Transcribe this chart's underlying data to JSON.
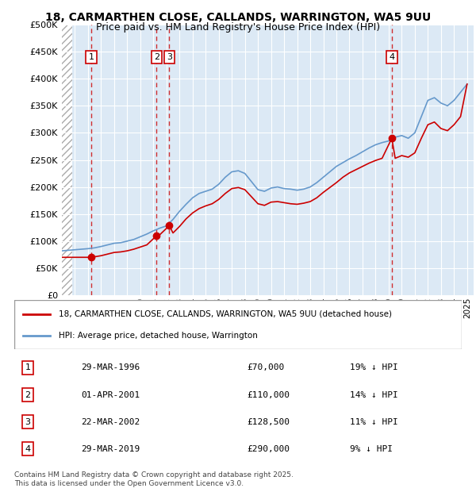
{
  "title1": "18, CARMARTHEN CLOSE, CALLANDS, WARRINGTON, WA5 9UU",
  "title2": "Price paid vs. HM Land Registry's House Price Index (HPI)",
  "ylabel_ticks": [
    "£0",
    "£50K",
    "£100K",
    "£150K",
    "£200K",
    "£250K",
    "£300K",
    "£350K",
    "£400K",
    "£450K",
    "£500K"
  ],
  "ytick_vals": [
    0,
    50000,
    100000,
    150000,
    200000,
    250000,
    300000,
    350000,
    400000,
    450000,
    500000
  ],
  "xmin": 1994,
  "xmax": 2025.5,
  "ymin": 0,
  "ymax": 500000,
  "background_color": "#dce9f5",
  "hatch_color": "#c0c0c0",
  "grid_color": "#ffffff",
  "sale_dates": [
    1996.24,
    2001.25,
    2002.22,
    2019.24
  ],
  "sale_prices": [
    70000,
    110000,
    128500,
    290000
  ],
  "sale_labels": [
    "1",
    "2",
    "3",
    "4"
  ],
  "red_line_color": "#cc0000",
  "blue_line_color": "#6699cc",
  "legend_red": "18, CARMARTHEN CLOSE, CALLANDS, WARRINGTON, WA5 9UU (detached house)",
  "legend_blue": "HPI: Average price, detached house, Warrington",
  "transaction_rows": [
    {
      "num": "1",
      "date": "29-MAR-1996",
      "price": "£70,000",
      "hpi": "19% ↓ HPI"
    },
    {
      "num": "2",
      "date": "01-APR-2001",
      "price": "£110,000",
      "hpi": "14% ↓ HPI"
    },
    {
      "num": "3",
      "date": "22-MAR-2002",
      "price": "£128,500",
      "hpi": "11% ↓ HPI"
    },
    {
      "num": "4",
      "date": "29-MAR-2019",
      "price": "£290,000",
      "hpi": "9% ↓ HPI"
    }
  ],
  "footer": "Contains HM Land Registry data © Crown copyright and database right 2025.\nThis data is licensed under the Open Government Licence v3.0.",
  "hpi_years": [
    1994,
    1994.5,
    1995,
    1995.5,
    1996,
    1996.5,
    1997,
    1997.5,
    1998,
    1998.5,
    1999,
    1999.5,
    2000,
    2000.5,
    2001,
    2001.5,
    2002,
    2002.5,
    2003,
    2003.5,
    2004,
    2004.5,
    2005,
    2005.5,
    2006,
    2006.5,
    2007,
    2007.5,
    2008,
    2008.5,
    2009,
    2009.5,
    2010,
    2010.5,
    2011,
    2011.5,
    2012,
    2012.5,
    2013,
    2013.5,
    2014,
    2014.5,
    2015,
    2015.5,
    2016,
    2016.5,
    2017,
    2017.5,
    2018,
    2018.5,
    2019,
    2019.5,
    2020,
    2020.5,
    2021,
    2021.5,
    2022,
    2022.5,
    2023,
    2023.5,
    2024,
    2024.5,
    2025
  ],
  "hpi_values": [
    82000,
    83000,
    84000,
    85000,
    86000,
    87500,
    90000,
    93000,
    96000,
    97000,
    100000,
    103000,
    108000,
    113000,
    119000,
    124000,
    128000,
    140000,
    155000,
    168000,
    180000,
    188000,
    192000,
    196000,
    205000,
    218000,
    228000,
    230000,
    225000,
    210000,
    195000,
    192000,
    198000,
    200000,
    197000,
    196000,
    194000,
    196000,
    200000,
    208000,
    218000,
    228000,
    238000,
    245000,
    252000,
    258000,
    265000,
    272000,
    278000,
    282000,
    285000,
    292000,
    295000,
    290000,
    300000,
    330000,
    360000,
    365000,
    355000,
    350000,
    360000,
    375000,
    390000
  ],
  "red_years": [
    1994,
    1996.24,
    1996.5,
    1997,
    1997.5,
    1998,
    1998.5,
    1999,
    1999.5,
    2000,
    2000.5,
    2001.25,
    2001.5,
    2002.22,
    2002.5,
    2003,
    2003.5,
    2004,
    2004.5,
    2005,
    2005.5,
    2006,
    2006.5,
    2007,
    2007.5,
    2008,
    2008.5,
    2009,
    2009.5,
    2010,
    2010.5,
    2011,
    2011.5,
    2012,
    2012.5,
    2013,
    2013.5,
    2014,
    2014.5,
    2015,
    2015.5,
    2016,
    2016.5,
    2017,
    2017.5,
    2018,
    2018.5,
    2019.24,
    2019.5,
    2020,
    2020.5,
    2021,
    2021.5,
    2022,
    2022.5,
    2023,
    2023.5,
    2024,
    2024.5,
    2025
  ],
  "red_values": [
    70000,
    70000,
    71000,
    73000,
    76000,
    79000,
    80000,
    82000,
    85000,
    89000,
    93000,
    110000,
    112000,
    128500,
    115000,
    127000,
    141000,
    152000,
    160000,
    165000,
    169000,
    177000,
    188000,
    197000,
    199000,
    195000,
    182000,
    169000,
    166000,
    172000,
    173000,
    171000,
    169000,
    168000,
    170000,
    173000,
    180000,
    190000,
    199000,
    208000,
    218000,
    226000,
    232000,
    238000,
    244000,
    249000,
    253000,
    290000,
    253000,
    258000,
    255000,
    263000,
    290000,
    315000,
    320000,
    308000,
    304000,
    315000,
    330000,
    390000
  ]
}
